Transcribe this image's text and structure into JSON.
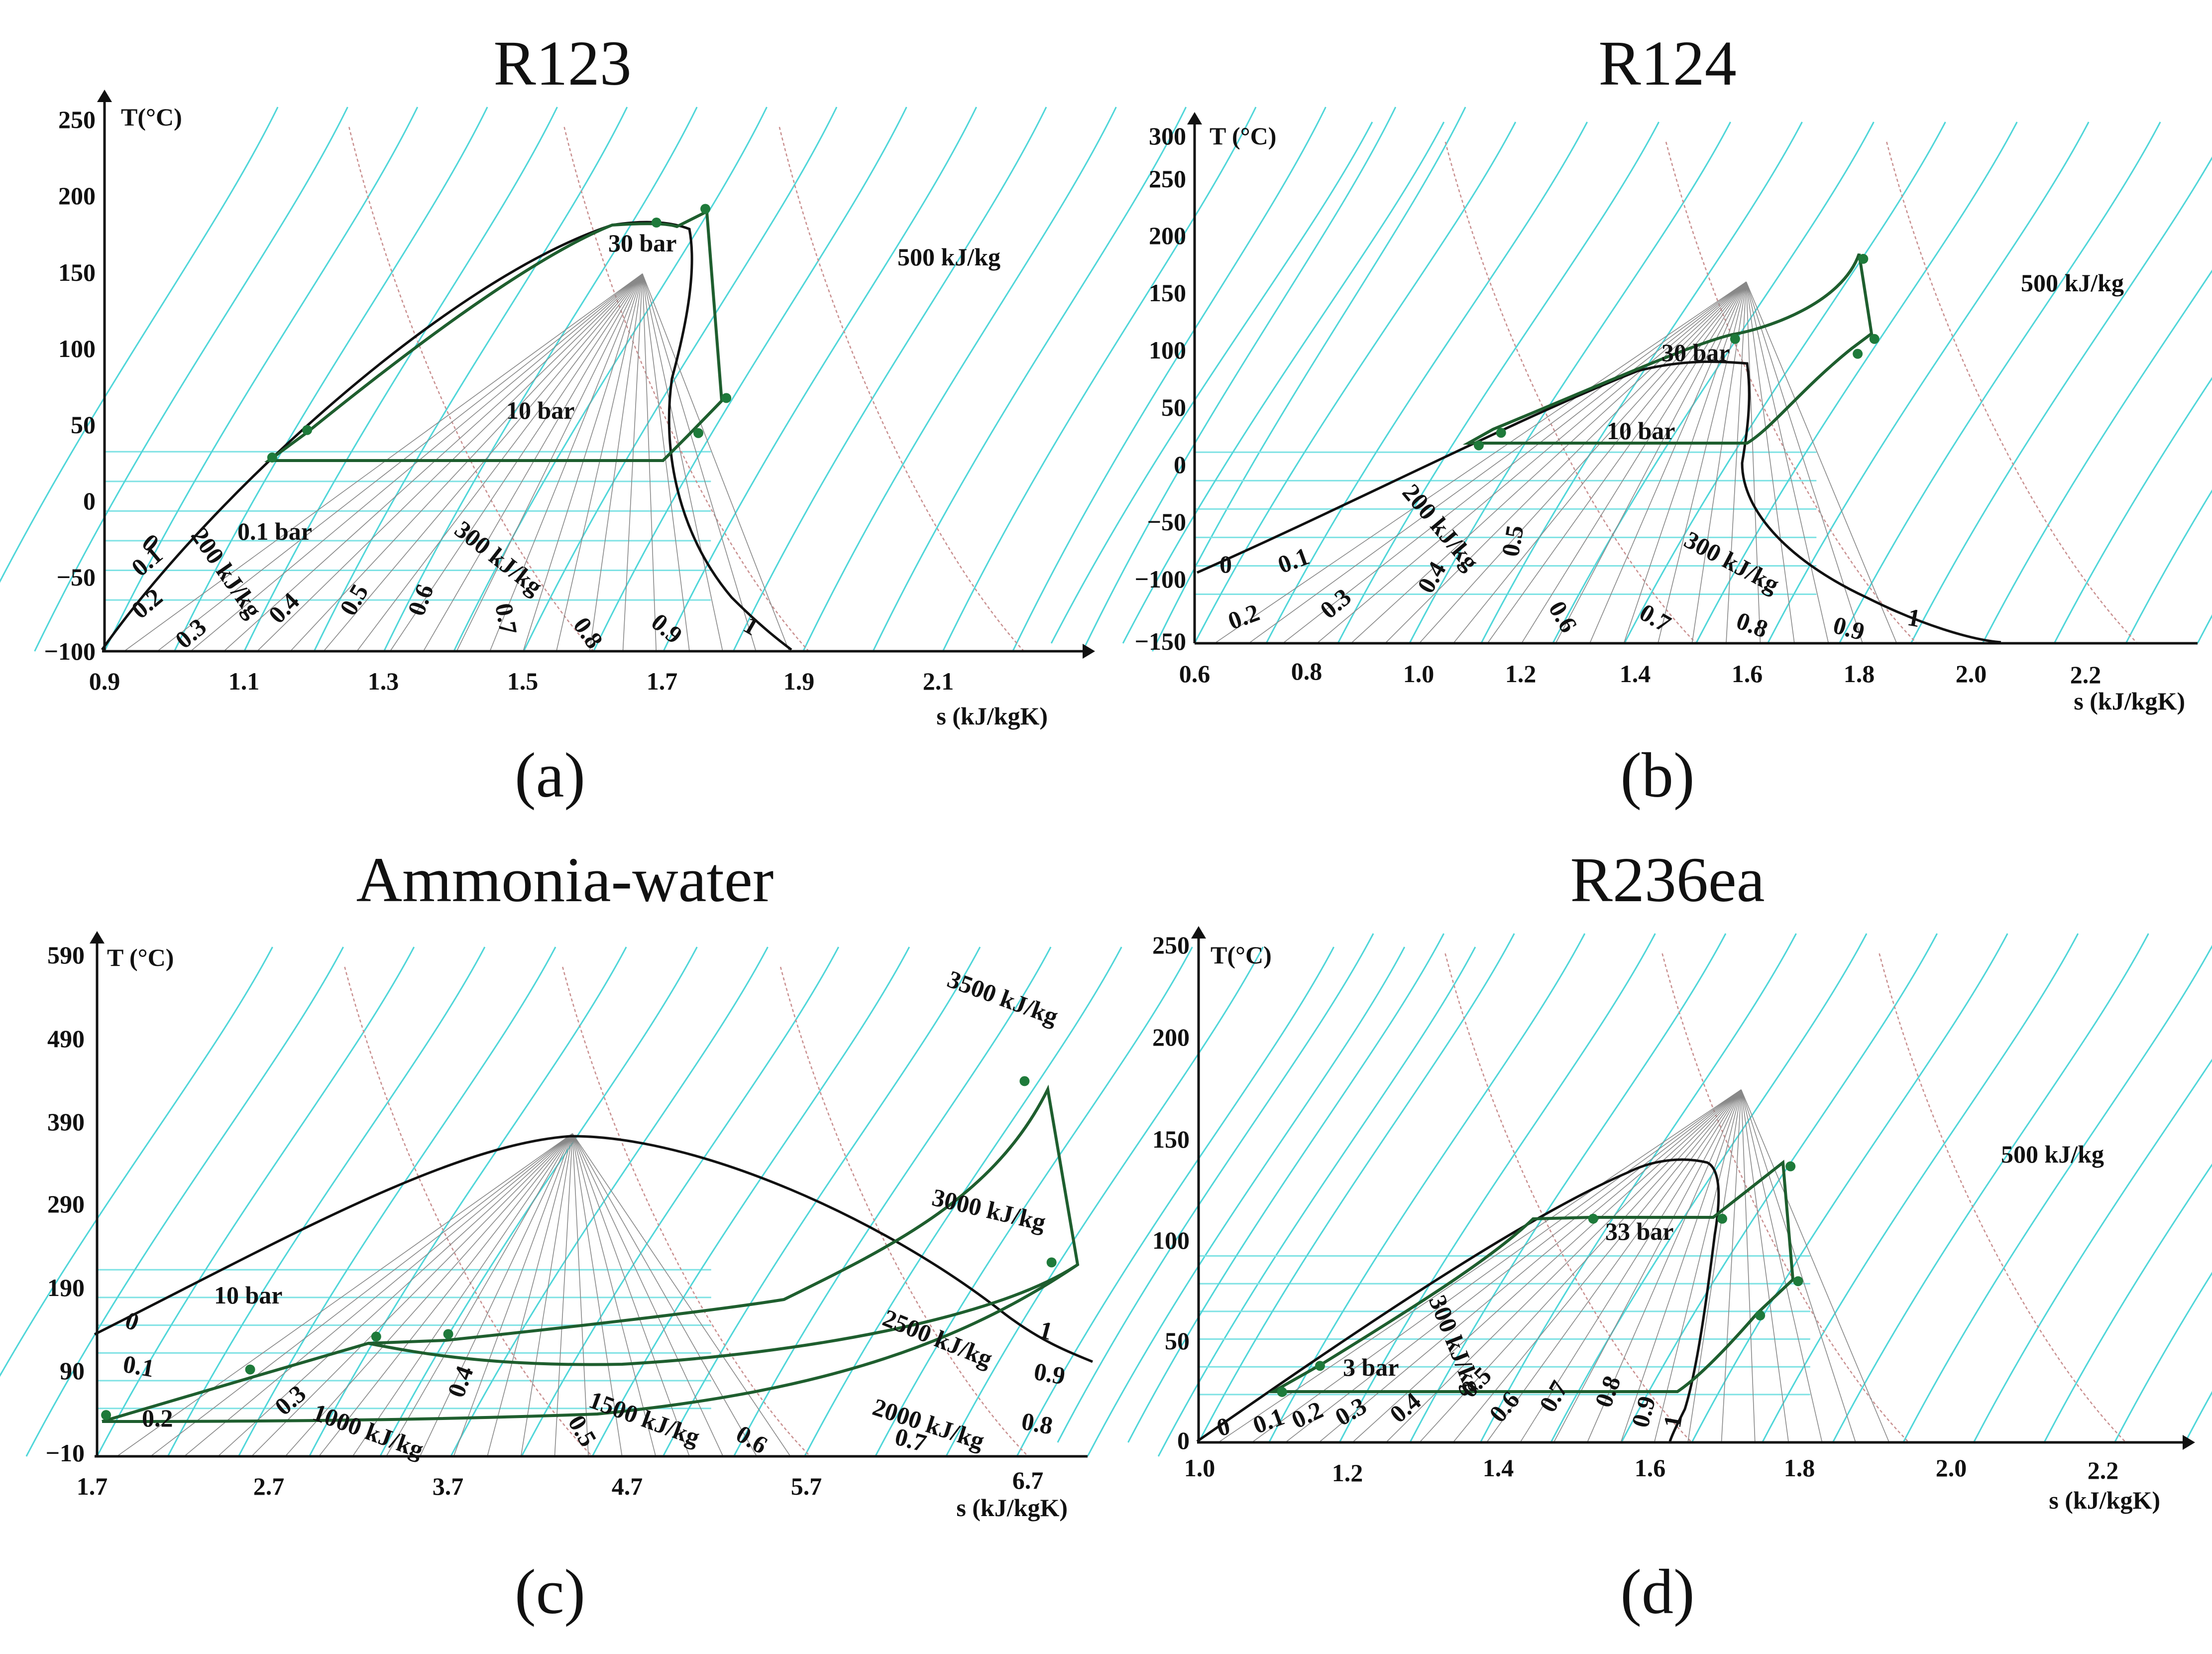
{
  "colors": {
    "saturation_dome": "#111111",
    "isobar_cyan": "#4fd6d9",
    "quality_lines": "#888888",
    "isenthalp_dashed": "#c98f8f",
    "cycle_green": "#1e5e2e",
    "cycle_points": "#1e7a3a"
  },
  "chart_data": [
    {
      "type": "line",
      "title": "R123",
      "caption": "(a)",
      "xlabel": "s (kJ/kgK)",
      "ylabel": "T(°C)",
      "xlim": [
        0.9,
        2.3
      ],
      "ylim": [
        -100,
        260
      ],
      "x_ticks": [
        "0.9",
        "1.1",
        "1.3",
        "1.5",
        "1.7",
        "1.9",
        "2.1"
      ],
      "y_ticks": [
        "250",
        "200",
        "150",
        "100",
        "50",
        "0",
        "−50",
        "−100"
      ],
      "annotations": [
        "30 bar",
        "10 bar",
        "0.1 bar",
        "500 kJ/kg",
        "300 kJ/kg",
        "200 kJ/kg"
      ],
      "quality_labels": [
        "0",
        "0.1",
        "0.2",
        "0.3",
        "0.4",
        "0.5",
        "0.6",
        "0.7",
        "0.8",
        "0.9",
        "1"
      ],
      "cycle_points": [
        {
          "s": 1.14,
          "T": 27
        },
        {
          "s": 1.19,
          "T": 45
        },
        {
          "s": 1.69,
          "T": 181
        },
        {
          "s": 1.76,
          "T": 190
        },
        {
          "s": 1.79,
          "T": 66
        },
        {
          "s": 1.75,
          "T": 43
        }
      ]
    },
    {
      "type": "line",
      "title": "R124",
      "caption": "(b)",
      "xlabel": "s (kJ/kgK)",
      "ylabel": "T (°C)",
      "xlim": [
        0.6,
        2.4
      ],
      "ylim": [
        -150,
        310
      ],
      "x_ticks": [
        "0.6",
        "0.8",
        "1.0",
        "1.2",
        "1.4",
        "1.6",
        "1.8",
        "2.0",
        "2.2"
      ],
      "y_ticks": [
        "300",
        "250",
        "200",
        "150",
        "100",
        "50",
        "0",
        "−50",
        "−100",
        "−150"
      ],
      "annotations": [
        "30 bar",
        "10 bar",
        "500 kJ/kg",
        "300 kJ/kg",
        "200 kJ/kg"
      ],
      "quality_labels": [
        "0",
        "0.1",
        "0.2",
        "0.3",
        "0.4",
        "0.5",
        "0.6",
        "0.7",
        "0.8",
        "0.9",
        "1"
      ],
      "cycle_points": [
        {
          "s": 1.11,
          "T": 23
        },
        {
          "s": 1.15,
          "T": 34
        },
        {
          "s": 1.57,
          "T": 116
        },
        {
          "s": 1.8,
          "T": 186
        },
        {
          "s": 1.82,
          "T": 116
        },
        {
          "s": 1.79,
          "T": 103
        }
      ]
    },
    {
      "type": "line",
      "title": "Ammonia-water",
      "caption": "(c)",
      "xlabel": "s (kJ/kgK)",
      "ylabel": "T (°C)",
      "xlim": [
        1.7,
        7.2
      ],
      "ylim": [
        -10,
        600
      ],
      "x_ticks": [
        "1.7",
        "2.7",
        "3.7",
        "4.7",
        "5.7",
        "6.7"
      ],
      "y_ticks": [
        "590",
        "490",
        "390",
        "290",
        "190",
        "90",
        "−10"
      ],
      "annotations": [
        "10 bar",
        "3500 kJ/kg",
        "3000 kJ/kg",
        "2500 kJ/kg",
        "2000 kJ/kg",
        "1500 kJ/kg",
        "1000 kJ/kg"
      ],
      "quality_labels": [
        "0",
        "0.1",
        "0.2",
        "0.3",
        "0.4",
        "0.5",
        "0.6",
        "0.7",
        "0.8",
        "0.9",
        "1"
      ],
      "cycle_points": [
        {
          "s": 1.75,
          "T": 39
        },
        {
          "s": 2.55,
          "T": 93
        },
        {
          "s": 3.25,
          "T": 132
        },
        {
          "s": 3.65,
          "T": 135
        },
        {
          "s": 6.85,
          "T": 435
        },
        {
          "s": 7.0,
          "T": 220
        }
      ]
    },
    {
      "type": "line",
      "title": "R236ea",
      "caption": "(d)",
      "xlabel": "s (kJ/kgK)",
      "ylabel": "T(°C)",
      "xlim": [
        1.0,
        2.3
      ],
      "ylim": [
        0,
        255
      ],
      "x_ticks": [
        "1.0",
        "1.2",
        "1.4",
        "1.6",
        "1.8",
        "2.0",
        "2.2"
      ],
      "y_ticks": [
        "250",
        "200",
        "150",
        "100",
        "50",
        "0"
      ],
      "annotations": [
        "33 bar",
        "3 bar",
        "500 kJ/kg",
        "300 kJ/kg"
      ],
      "quality_labels": [
        "0",
        "0.1",
        "0.2",
        "0.3",
        "0.4",
        "0.5",
        "0.6",
        "0.7",
        "0.8",
        "0.9",
        "1"
      ],
      "cycle_points": [
        {
          "s": 1.11,
          "T": 25
        },
        {
          "s": 1.16,
          "T": 38
        },
        {
          "s": 1.52,
          "T": 111
        },
        {
          "s": 1.69,
          "T": 111
        },
        {
          "s": 1.78,
          "T": 137
        },
        {
          "s": 1.79,
          "T": 80
        },
        {
          "s": 1.74,
          "T": 63
        }
      ]
    }
  ]
}
